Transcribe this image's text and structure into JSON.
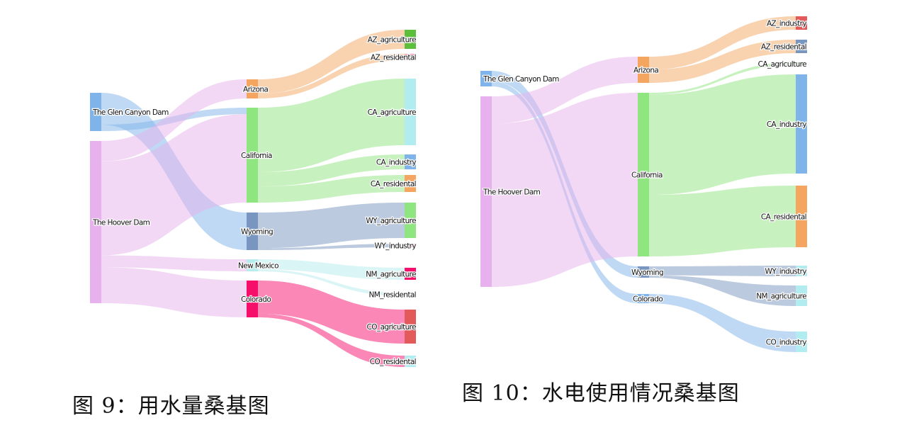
{
  "figures": [
    {
      "id": "water-usage",
      "caption": "图 9：用水量桑基图",
      "chart_data": {
        "type": "sankey",
        "title": "",
        "nodes": [
          {
            "name": "The Glen Canyon Dam",
            "color": "#7fb4ea"
          },
          {
            "name": "The Hoover Dam",
            "color": "#e6b1ec"
          },
          {
            "name": "Arizona",
            "color": "#f4a55f"
          },
          {
            "name": "California",
            "color": "#8fe57f"
          },
          {
            "name": "Wyoming",
            "color": "#7896bf"
          },
          {
            "name": "New Mexico",
            "color": "#b6ecec"
          },
          {
            "name": "Colorado",
            "color": "#f50f6b"
          },
          {
            "name": "AZ_agriculture",
            "color": "#5cbe3a"
          },
          {
            "name": "AZ_residental",
            "color": "#f48fa8"
          },
          {
            "name": "CA_agriculture",
            "color": "#b1ecf1"
          },
          {
            "name": "CA_industry",
            "color": "#7fb4ea"
          },
          {
            "name": "CA_residental",
            "color": "#f4a55f"
          },
          {
            "name": "WY_agriculture",
            "color": "#8fe57f"
          },
          {
            "name": "WY_industry",
            "color": "#f48fa8"
          },
          {
            "name": "NM_agriculture",
            "color": "#f50f6b"
          },
          {
            "name": "NM_residental",
            "color": "#b1ecf1"
          },
          {
            "name": "CO_agriculture",
            "color": "#e25a5a"
          },
          {
            "name": "CO_residental",
            "color": "#b1ecf1"
          }
        ],
        "links": [
          {
            "source": "The Glen Canyon Dam",
            "target": "Wyoming",
            "value": 20
          },
          {
            "source": "The Glen Canyon Dam",
            "target": "California",
            "value": 4
          },
          {
            "source": "The Hoover Dam",
            "target": "Arizona",
            "value": 12
          },
          {
            "source": "The Hoover Dam",
            "target": "California",
            "value": 55
          },
          {
            "source": "The Hoover Dam",
            "target": "New Mexico",
            "value": 7
          },
          {
            "source": "The Hoover Dam",
            "target": "Colorado",
            "value": 21
          },
          {
            "source": "Arizona",
            "target": "AZ_agriculture",
            "value": 9
          },
          {
            "source": "Arizona",
            "target": "AZ_residental",
            "value": 3
          },
          {
            "source": "California",
            "target": "CA_agriculture",
            "value": 36
          },
          {
            "source": "California",
            "target": "CA_industry",
            "value": 8
          },
          {
            "source": "California",
            "target": "CA_residental",
            "value": 9
          },
          {
            "source": "Wyoming",
            "target": "WY_agriculture",
            "value": 19
          },
          {
            "source": "Wyoming",
            "target": "WY_industry",
            "value": 1
          },
          {
            "source": "New Mexico",
            "target": "NM_agriculture",
            "value": 5
          },
          {
            "source": "New Mexico",
            "target": "NM_residental",
            "value": 1
          },
          {
            "source": "Colorado",
            "target": "CO_agriculture",
            "value": 18
          },
          {
            "source": "Colorado",
            "target": "CO_residental",
            "value": 2
          }
        ]
      }
    },
    {
      "id": "hydropower-usage",
      "caption": "图 10：水电使用情况桑基图",
      "chart_data": {
        "type": "sankey",
        "title": "",
        "nodes": [
          {
            "name": "The Glen Canyon Dam",
            "color": "#7fb4ea"
          },
          {
            "name": "The Hoover Dam",
            "color": "#e6b1ec"
          },
          {
            "name": "Arizona",
            "color": "#f4a55f"
          },
          {
            "name": "California",
            "color": "#8fe57f"
          },
          {
            "name": "Wyoming",
            "color": "#7896bf"
          },
          {
            "name": "Colorado",
            "color": "#7fb4ea"
          },
          {
            "name": "AZ_industry",
            "color": "#e25a5a"
          },
          {
            "name": "AZ_residental",
            "color": "#7896bf"
          },
          {
            "name": "CA_agriculture",
            "color": "#8fe57f"
          },
          {
            "name": "CA_industry",
            "color": "#7fb4ea"
          },
          {
            "name": "CA_residental",
            "color": "#f4a55f"
          },
          {
            "name": "WY_industry",
            "color": "#b1ecf1"
          },
          {
            "name": "NM_agriculture",
            "color": "#b1ecf1"
          },
          {
            "name": "CO_industry",
            "color": "#b1ecf1"
          }
        ],
        "links": [
          {
            "source": "The Glen Canyon Dam",
            "target": "Wyoming",
            "value": 6
          },
          {
            "source": "The Glen Canyon Dam",
            "target": "Colorado",
            "value": 3
          },
          {
            "source": "The Hoover Dam",
            "target": "Arizona",
            "value": 8
          },
          {
            "source": "The Hoover Dam",
            "target": "California",
            "value": 48
          },
          {
            "source": "Arizona",
            "target": "AZ_industry",
            "value": 4
          },
          {
            "source": "Arizona",
            "target": "AZ_residental",
            "value": 4
          },
          {
            "source": "California",
            "target": "CA_agriculture",
            "value": 0.5
          },
          {
            "source": "California",
            "target": "CA_industry",
            "value": 26
          },
          {
            "source": "California",
            "target": "CA_residental",
            "value": 16
          },
          {
            "source": "Wyoming",
            "target": "WY_industry",
            "value": 2
          },
          {
            "source": "Wyoming",
            "target": "NM_agriculture",
            "value": 0.5
          },
          {
            "source": "Colorado",
            "target": "CO_industry",
            "value": 0.8
          }
        ]
      }
    }
  ]
}
